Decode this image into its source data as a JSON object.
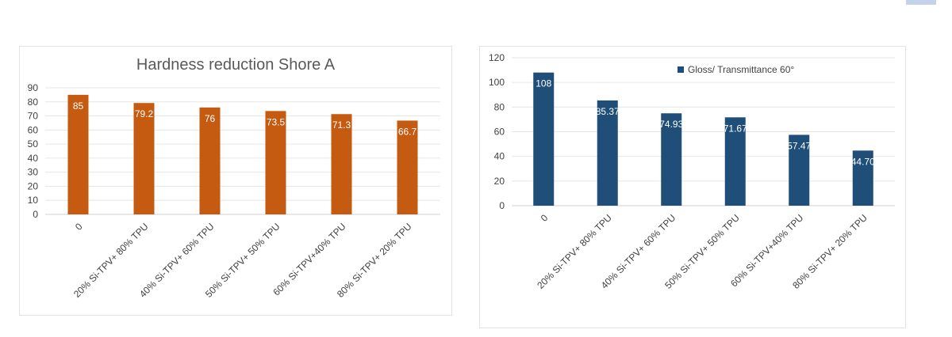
{
  "colors": {
    "series1": "#c55a11",
    "series2": "#1f4e79",
    "tab": "#c5d3ea"
  },
  "chart_data": [
    {
      "type": "bar",
      "title": "Hardness reduction  Shore A",
      "categories": [
        "0",
        "20% Si-TPV+ 80% TPU",
        "40% Si-TPV+ 60% TPU",
        "50% Si-TPV+ 50% TPU",
        "60% Si-TPV+40% TPU",
        "80% Si-TPV+ 20% TPU"
      ],
      "values": [
        85,
        79.2,
        76,
        73.5,
        71.3,
        66.7
      ],
      "labels": [
        "85",
        "79.2",
        "76",
        "73.5",
        "71.3",
        "66.7"
      ],
      "ylim": [
        0,
        90
      ],
      "yticks": [
        "0",
        "10",
        "20",
        "30",
        "40",
        "50",
        "60",
        "70",
        "80",
        "90"
      ],
      "xlabel": "",
      "ylabel": "",
      "grid": true,
      "legend": null
    },
    {
      "type": "bar",
      "title": "",
      "series_name": "Gloss/ Transmittance 60°",
      "categories": [
        "0",
        "20% Si-TPV+ 80% TPU",
        "40% Si-TPV+ 60% TPU",
        "50% Si-TPV+ 50% TPU",
        "60% Si-TPV+40% TPU",
        "80% Si-TPV+ 20% TPU"
      ],
      "values": [
        108,
        85.37,
        74.93,
        71.67,
        57.47,
        44.7
      ],
      "labels": [
        "108",
        "85.37",
        "74.93",
        "71.67",
        "57.47",
        "44.70"
      ],
      "ylim": [
        0,
        120
      ],
      "yticks": [
        "0",
        "20",
        "40",
        "60",
        "80",
        "100",
        "120"
      ],
      "xlabel": "",
      "ylabel": "",
      "grid": true,
      "legend": "top-center"
    }
  ]
}
